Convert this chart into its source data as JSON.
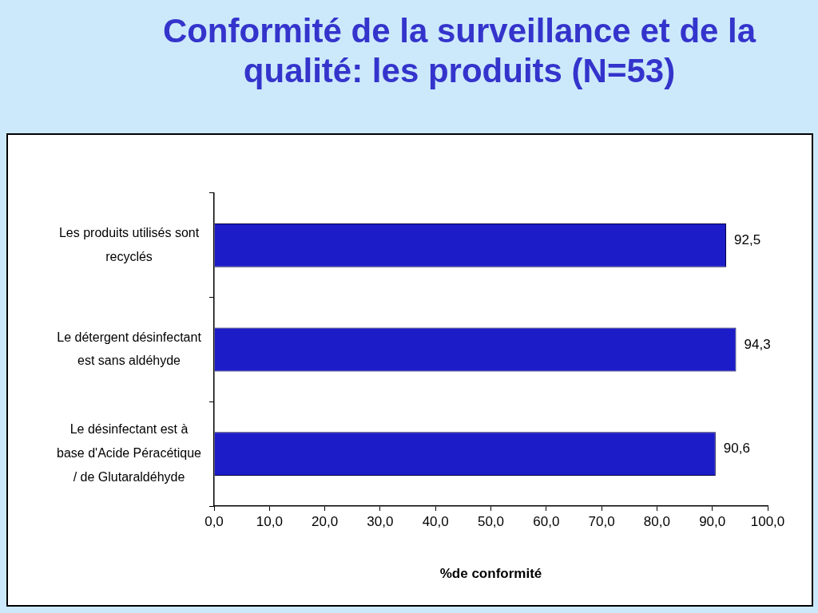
{
  "chart_data": {
    "type": "bar",
    "orientation": "horizontal",
    "title": "Conformité de la surveillance et de la qualité: les produits (N=53)",
    "xlabel": "%de conformité",
    "categories": [
      "Les produits utilisés sont recyclés",
      "Le détergent désinfectant est sans aldéhyde",
      "Le désinfectant est à base d'Acide Péracétique / de Glutaraldéhyde"
    ],
    "values": [
      92.5,
      94.3,
      90.6
    ],
    "color": "#1c1cc8",
    "value_labels": [
      "92,5",
      "94,3",
      "90,6"
    ],
    "xlim": [
      0,
      100
    ],
    "xticks": [
      {
        "value": 0,
        "label": "0,0"
      },
      {
        "value": 10,
        "label": "10,0"
      },
      {
        "value": 20,
        "label": "20,0"
      },
      {
        "value": 30,
        "label": "30,0"
      },
      {
        "value": 40,
        "label": "40,0"
      },
      {
        "value": 50,
        "label": "50,0"
      },
      {
        "value": 60,
        "label": "60,0"
      },
      {
        "value": 70,
        "label": "70,0"
      },
      {
        "value": 80,
        "label": "80,0"
      },
      {
        "value": 90,
        "label": "90,0"
      },
      {
        "value": 100,
        "label": "100,0"
      }
    ]
  }
}
